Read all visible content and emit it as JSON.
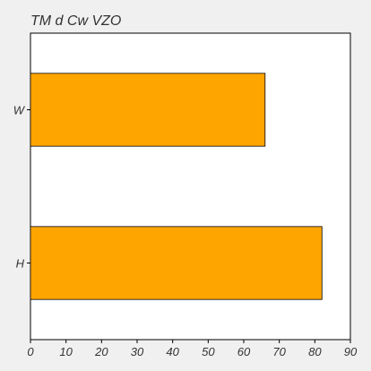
{
  "chart_data": {
    "type": "bar",
    "orientation": "horizontal",
    "title": "TM  d Cw VZO",
    "xlabel": "",
    "ylabel": "",
    "categories": [
      "W",
      "H"
    ],
    "values": [
      66,
      82
    ],
    "xlim": [
      0,
      90
    ],
    "x_ticks": [
      0,
      10,
      20,
      30,
      40,
      50,
      60,
      70,
      80,
      90
    ],
    "grid": false,
    "legend": "none",
    "colors": {
      "bar_fill": "#ffa500",
      "bar_stroke": "#000000",
      "plot_background": "#ffffff",
      "page_background": "#f0f0f0",
      "axis": "#000000"
    }
  }
}
